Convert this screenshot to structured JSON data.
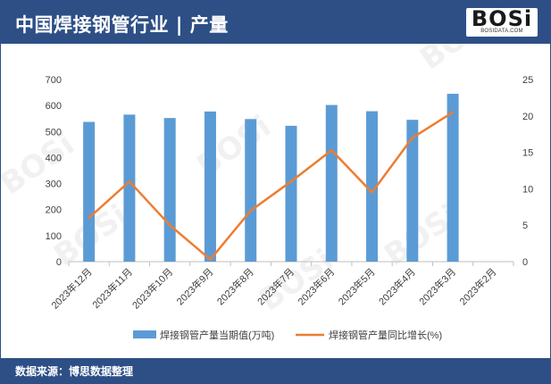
{
  "header": {
    "title": "中国焊接钢管行业 | 产量",
    "logo_text": "BOSi",
    "logo_sub": "BOSIDATA.COM"
  },
  "footer": {
    "source": "数据来源：博思数据整理"
  },
  "colors": {
    "bar": "#5b9bd5",
    "line": "#ed7d31",
    "header": "#2d4f86"
  },
  "chart_data": {
    "type": "bar",
    "categories": [
      "2023年12月",
      "2023年11月",
      "2023年10月",
      "2023年9月",
      "2023年8月",
      "2023年7月",
      "2023年6月",
      "2023年5月",
      "2023年4月",
      "2023年3月",
      "2023年2月"
    ],
    "series": [
      {
        "name": "焊接钢管产量当期值(万吨)",
        "type": "bar",
        "axis": "left",
        "values": [
          537,
          565,
          552,
          577,
          548,
          522,
          602,
          578,
          545,
          645,
          null
        ]
      },
      {
        "name": "焊接钢管产量同比增长(%)",
        "type": "line",
        "axis": "right",
        "values": [
          6.0,
          11.0,
          5.0,
          0.3,
          7.0,
          11.0,
          15.3,
          9.5,
          17.0,
          20.5,
          null
        ]
      }
    ],
    "y_left": {
      "min": 0,
      "max": 700,
      "ticks": [
        0,
        100,
        200,
        300,
        400,
        500,
        600,
        700
      ]
    },
    "y_right": {
      "min": 0,
      "max": 25,
      "ticks": [
        0,
        5,
        10,
        15,
        20,
        25
      ]
    },
    "legend_position": "bottom"
  }
}
